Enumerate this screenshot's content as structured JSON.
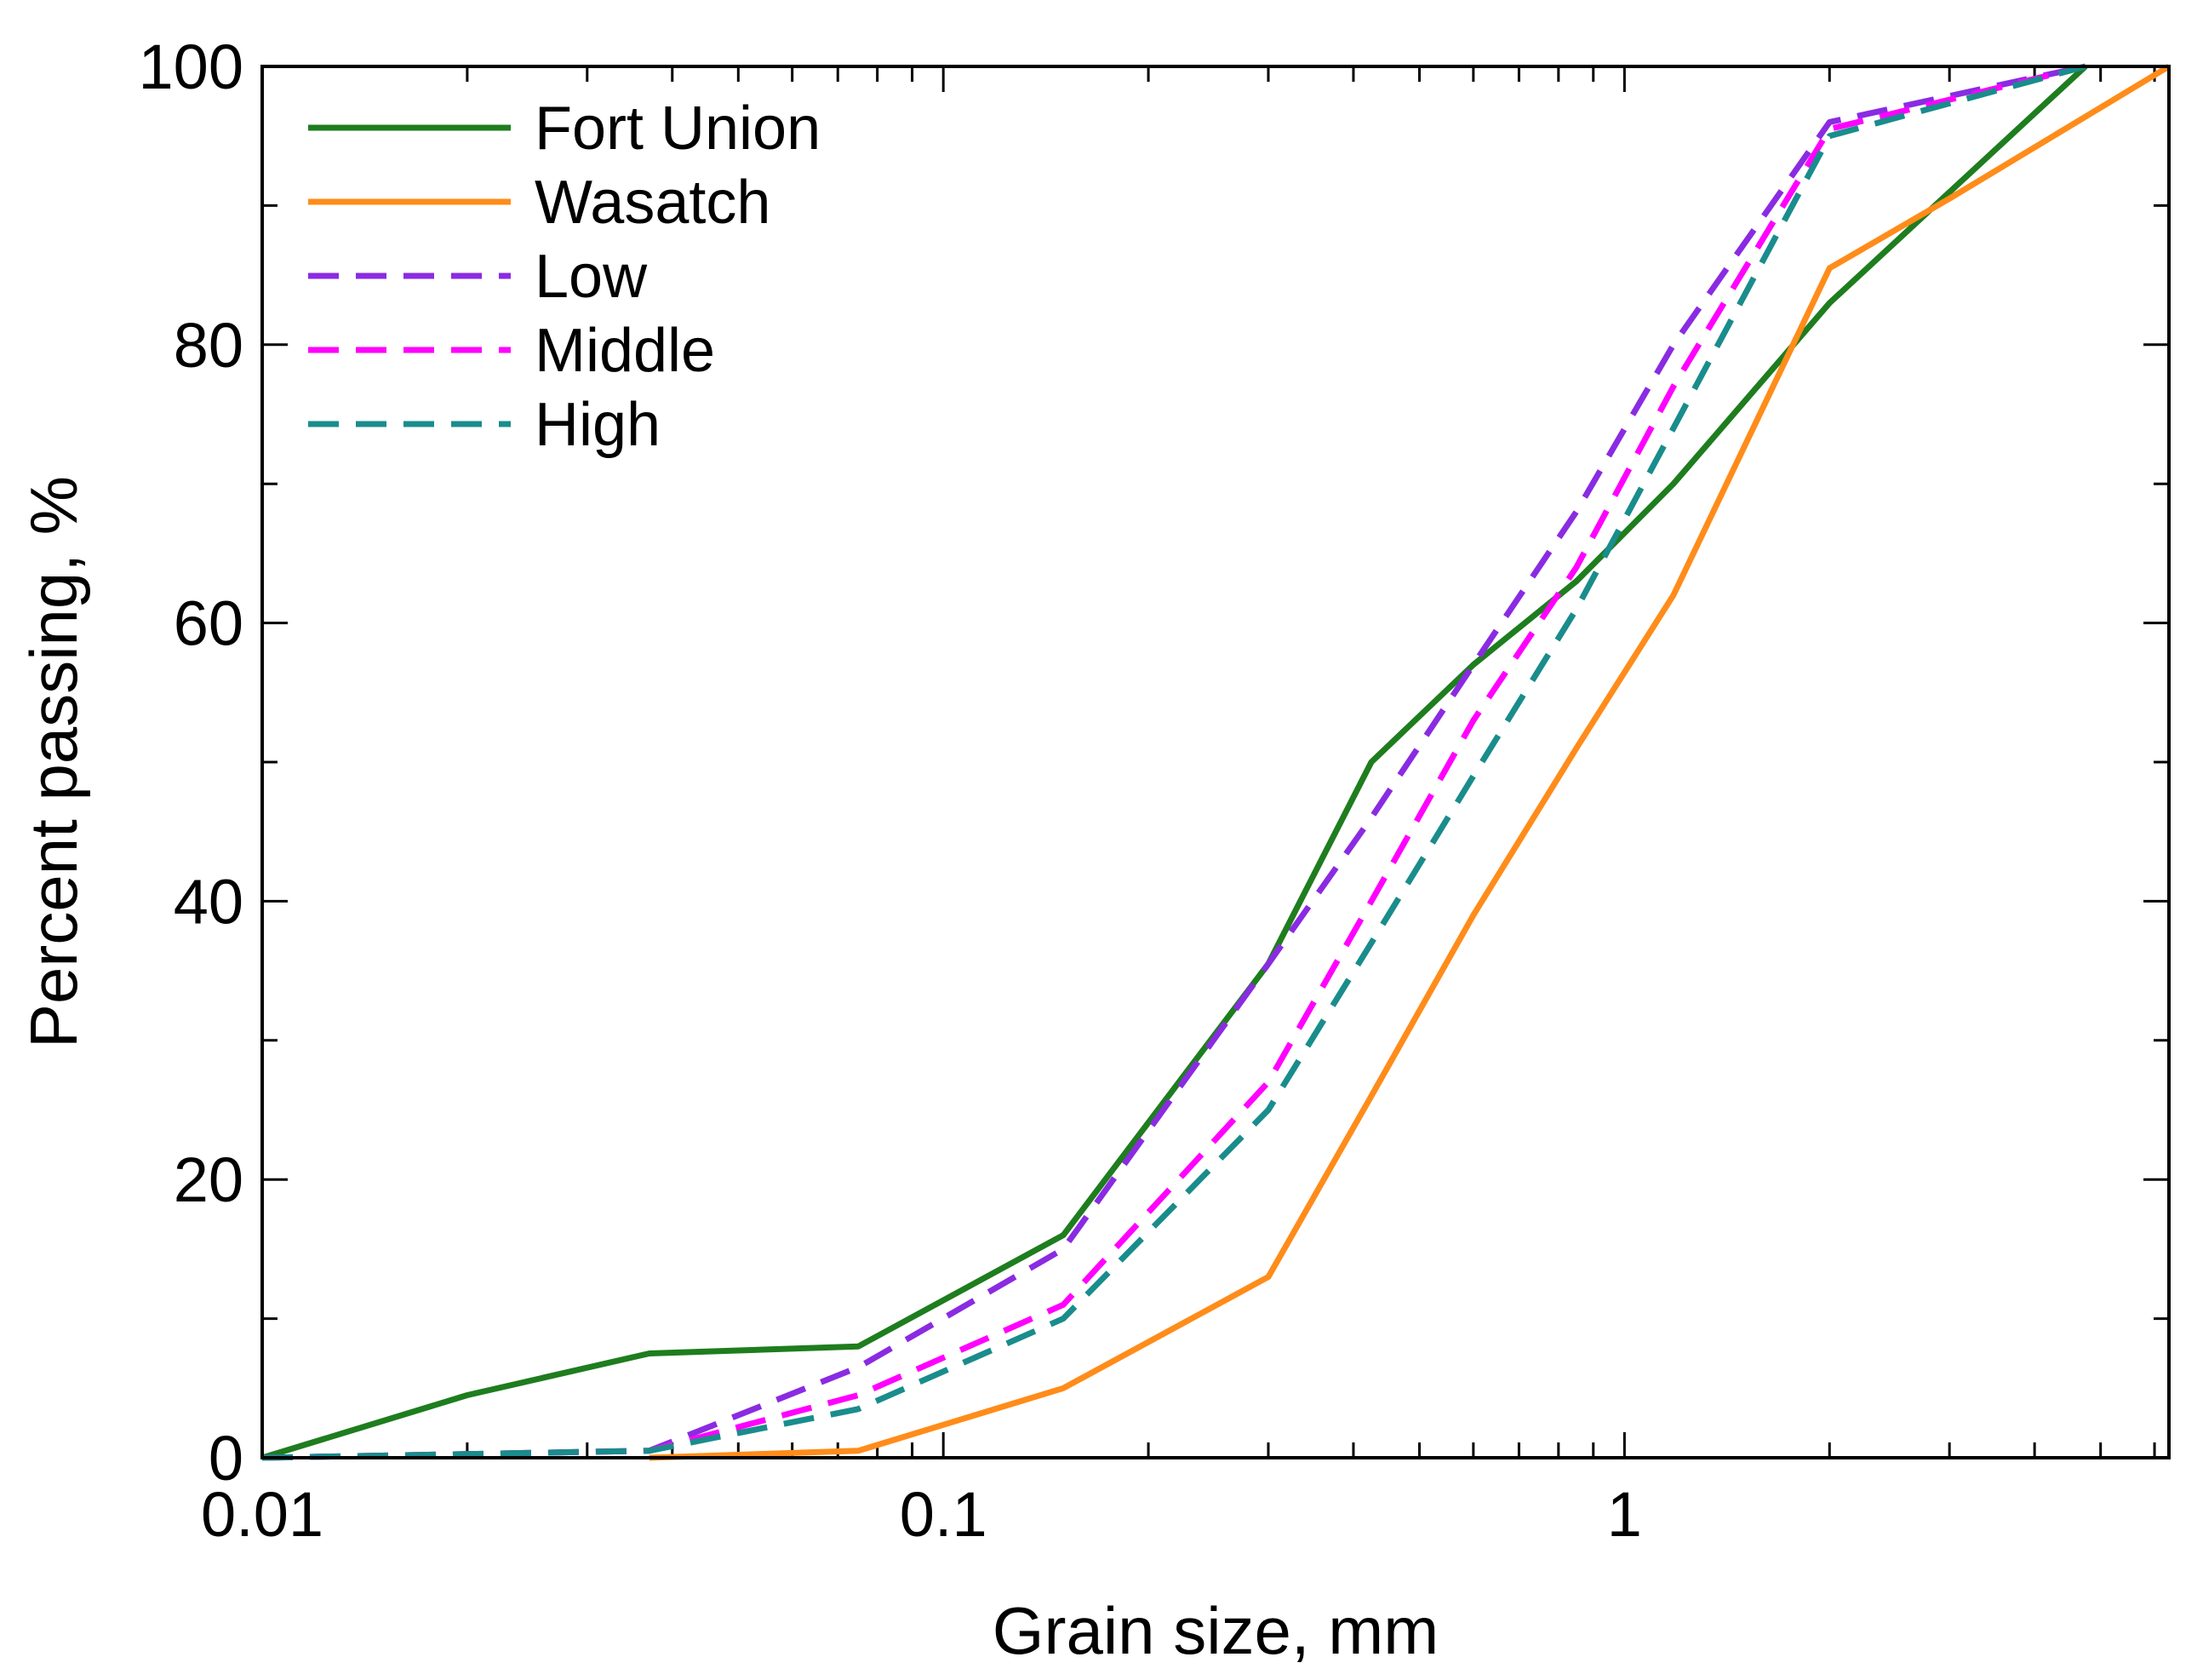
{
  "chart_data": {
    "type": "line",
    "title": "",
    "xlabel": "Grain size, mm",
    "ylabel": "Percent passing, %",
    "xscale": "log",
    "xlim": [
      0.01,
      6.3
    ],
    "ylim": [
      0,
      100
    ],
    "x_ticks": [
      {
        "value": 0.01,
        "label": "0.01"
      },
      {
        "value": 0.1,
        "label": "0.1"
      },
      {
        "value": 1,
        "label": "1"
      }
    ],
    "y_ticks": [
      {
        "value": 0,
        "label": "0"
      },
      {
        "value": 20,
        "label": "20"
      },
      {
        "value": 40,
        "label": "40"
      },
      {
        "value": 60,
        "label": "60"
      },
      {
        "value": 80,
        "label": "80"
      },
      {
        "value": 100,
        "label": "100"
      }
    ],
    "grid": false,
    "legend_position": "top-left",
    "series": [
      {
        "name": "Fort Union",
        "color": "#1e7d1e",
        "style": "solid",
        "x": [
          0.01,
          0.02,
          0.037,
          0.075,
          0.15,
          0.3,
          0.425,
          0.6,
          0.85,
          1.18,
          2.0,
          4.75
        ],
        "y": [
          0,
          4.5,
          7.5,
          8,
          16,
          35.5,
          50,
          57,
          63,
          70,
          83,
          100
        ]
      },
      {
        "name": "Wasatch",
        "color": "#ff8c1a",
        "style": "solid",
        "x": [
          0.037,
          0.075,
          0.15,
          0.3,
          0.425,
          0.6,
          0.85,
          1.18,
          2.0,
          3.0,
          6.3
        ],
        "y": [
          0,
          0.5,
          5,
          13,
          26,
          39,
          51,
          62,
          85.5,
          90.5,
          100
        ]
      },
      {
        "name": "Low",
        "color": "#8a2be2",
        "style": "dashed",
        "x": [
          0.01,
          0.037,
          0.075,
          0.15,
          0.3,
          0.425,
          0.6,
          0.85,
          1.18,
          2.0,
          4.75
        ],
        "y": [
          0,
          0.5,
          6.5,
          15,
          35.5,
          46,
          57,
          68,
          80,
          96,
          100
        ]
      },
      {
        "name": "Middle",
        "color": "#ff00ff",
        "style": "dashed",
        "x": [
          0.01,
          0.037,
          0.075,
          0.15,
          0.3,
          0.425,
          0.6,
          0.85,
          1.18,
          2.0,
          4.75
        ],
        "y": [
          0,
          0.5,
          4.5,
          11,
          27,
          40,
          53,
          64,
          77,
          95.5,
          100
        ]
      },
      {
        "name": "High",
        "color": "#1a8c8c",
        "style": "dashed",
        "x": [
          0.01,
          0.037,
          0.075,
          0.15,
          0.3,
          0.425,
          0.6,
          0.85,
          1.18,
          2.0,
          4.75
        ],
        "y": [
          0,
          0.5,
          3.5,
          10,
          25,
          37,
          49,
          61,
          74,
          95,
          100
        ]
      }
    ]
  }
}
